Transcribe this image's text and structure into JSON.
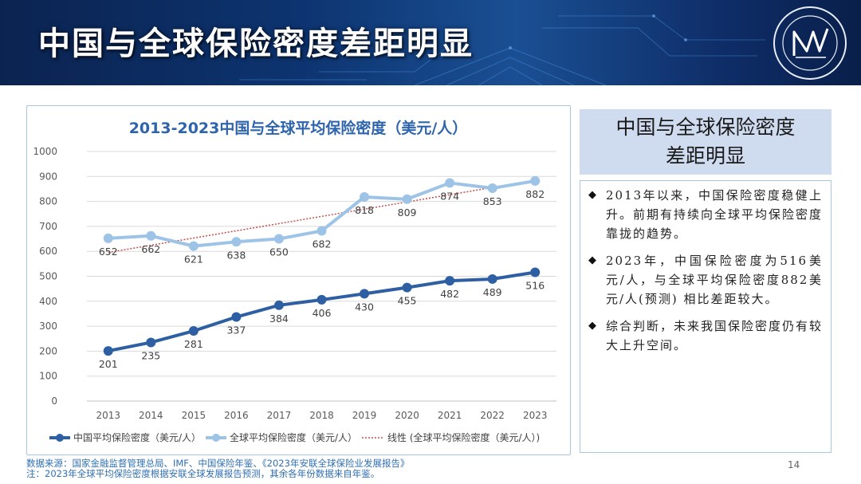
{
  "slide": {
    "title": "中国与全球保险密度差距明显",
    "page_number": "14"
  },
  "chart_data": {
    "type": "line",
    "title": "2013-2023中国与全球平均保险密度（美元/人）",
    "categories": [
      "2013",
      "2014",
      "2015",
      "2016",
      "2017",
      "2018",
      "2019",
      "2020",
      "2021",
      "2022",
      "2023"
    ],
    "ylim": [
      0,
      1000
    ],
    "yticks": [
      0,
      100,
      200,
      300,
      400,
      500,
      600,
      700,
      800,
      900,
      1000
    ],
    "grid": true,
    "legend_position": "bottom",
    "series": [
      {
        "name": "中国平均保险密度（美元/人）",
        "values": [
          201,
          235,
          281,
          337,
          384,
          406,
          430,
          455,
          482,
          489,
          516
        ],
        "color": "#2e5fa3"
      },
      {
        "name": "全球平均保险密度（美元/人）",
        "values": [
          652,
          662,
          621,
          638,
          650,
          682,
          818,
          809,
          874,
          853,
          882
        ],
        "color": "#9dc3e6"
      }
    ],
    "trendline": {
      "name": "线性 (全球平均保险密度（美元/人）)",
      "of": "全球平均保险密度（美元/人）",
      "type": "linear",
      "color": "#c0504d"
    }
  },
  "panel": {
    "heading_lines": [
      "中国与全球保险密度",
      "差距明显"
    ],
    "bullets": [
      "2013年以来，中国保险密度稳健上升。前期有持续向全球平均保险密度靠拢的趋势。",
      "2023年，中国保险密度为516美元/人，与全球平均保险密度882美元/人(预测) 相比差距较大。",
      "综合判断，未来我国保险密度仍有较大上升空间。"
    ],
    "bullet_symbol": "◆"
  },
  "source_note": {
    "line1": "数据来源：国家金融监督管理总局、IMF、中国保险年鉴、《2023年安联全球保险业发展报告》",
    "line2": "注：2023年全球平均保险密度根据安联全球发展报告预测，其余各年份数据来自年鉴。"
  },
  "colors": {
    "banner": "#0d3470",
    "accent": "#2e5fa3",
    "panel_head_bg": "#cfdbef",
    "source_text": "#2f6fb3"
  }
}
